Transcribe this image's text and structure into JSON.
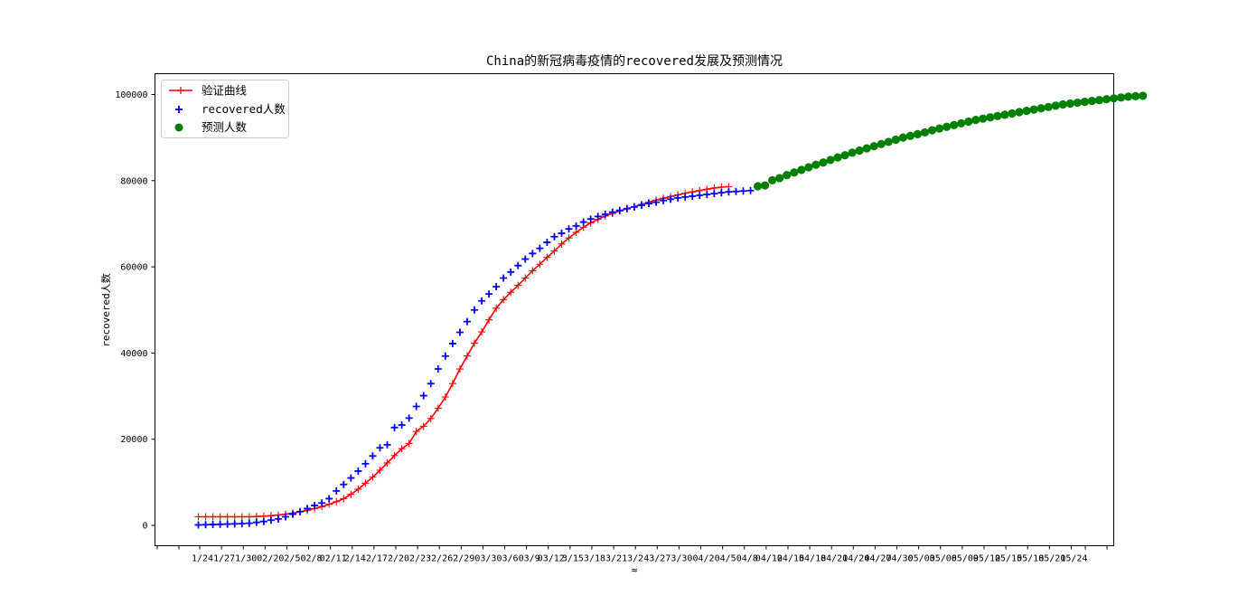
{
  "chart_data": {
    "type": "line",
    "title": "China的新冠病毒疫情的recovered发展及预测情况",
    "xlabel": "≈",
    "ylabel": "recovered人数",
    "ylim": [
      -5000,
      105000
    ],
    "yticks": [
      0,
      20000,
      40000,
      60000,
      80000,
      100000
    ],
    "ytick_labels": [
      "0",
      "20000",
      "40000",
      "60000",
      "80000",
      "100000"
    ],
    "xtick_labels": [
      "1/24",
      "1/27",
      "1/30",
      "02/2",
      "02/5",
      "02/8",
      "02/11",
      "2/14",
      "2/17",
      "2/20",
      "2/23",
      "2/26",
      "2/29",
      "03/3",
      "03/6",
      "03/9",
      "03/12",
      "3/15",
      "3/18",
      "3/21",
      "3/24",
      "3/27",
      "3/30",
      "04/2",
      "04/5",
      "04/8",
      "04/12",
      "04/15",
      "04/18",
      "04/21",
      "04/24",
      "04/27",
      "04/30",
      "05/03",
      "05/06",
      "05/09",
      "05/12",
      "05/15",
      "05/18",
      "05/21",
      "05/24"
    ],
    "legend": {
      "position": "upper-left",
      "entries": [
        "验证曲线",
        "recovered人数",
        "预测人数"
      ]
    },
    "colors": {
      "validation": "#ff0000",
      "recovered": "#0000ff",
      "predicted": "#008000"
    },
    "series": [
      {
        "name": "验证曲线",
        "marker": "plus-line",
        "x_start": 0,
        "values": [
          2000,
          2000,
          2000,
          2000,
          2000,
          2000,
          2000,
          2000,
          2050,
          2150,
          2250,
          2400,
          2600,
          2850,
          3150,
          3500,
          3900,
          4350,
          4900,
          5500,
          6200,
          7200,
          8400,
          9800,
          11200,
          12800,
          14500,
          16200,
          17800,
          19000,
          21800,
          23000,
          24800,
          27200,
          29800,
          32900,
          36300,
          39300,
          42300,
          44900,
          47700,
          50400,
          52400,
          54100,
          55700,
          57400,
          59100,
          60600,
          62200,
          63700,
          65300,
          66700,
          68000,
          69200,
          70200,
          71000,
          71800,
          72400,
          73000,
          73500,
          74000,
          74500,
          75000,
          75500,
          75900,
          76300,
          76700,
          77100,
          77400,
          77700,
          78000,
          78300,
          78500,
          78600
        ]
      },
      {
        "name": "recovered人数",
        "marker": "plus",
        "x_start": 0,
        "values": [
          100,
          150,
          200,
          250,
          300,
          350,
          400,
          500,
          700,
          900,
          1200,
          1500,
          2000,
          2600,
          3200,
          3900,
          4600,
          5200,
          6200,
          8000,
          9500,
          11000,
          12600,
          14300,
          16100,
          18000,
          18700,
          22700,
          23300,
          24900,
          27600,
          30100,
          32900,
          36300,
          39300,
          42200,
          44800,
          47300,
          50000,
          52100,
          53700,
          55400,
          57400,
          58800,
          60300,
          61800,
          63100,
          64300,
          65700,
          67000,
          67800,
          68800,
          69500,
          70400,
          71100,
          71700,
          72200,
          72700,
          73100,
          73500,
          73900,
          74300,
          74700,
          75000,
          75400,
          75700,
          76000,
          76200,
          76400,
          76600,
          76800,
          77000,
          77200,
          77400,
          77500,
          77600,
          77700
        ]
      },
      {
        "name": "预测人数",
        "marker": "circle",
        "x_start": 77,
        "values": [
          78700,
          78900,
          80100,
          80600,
          81300,
          81900,
          82500,
          83100,
          83700,
          84200,
          84800,
          85400,
          85900,
          86500,
          87000,
          87500,
          88000,
          88500,
          89000,
          89500,
          90000,
          90400,
          90800,
          91200,
          91700,
          92100,
          92500,
          92900,
          93300,
          93700,
          94100,
          94400,
          94700,
          95000,
          95300,
          95600,
          95900,
          96200,
          96500,
          96800,
          97100,
          97400,
          97700,
          97900,
          98100,
          98300,
          98500,
          98700,
          98900,
          99100,
          99300,
          99500,
          99600,
          99700
        ]
      }
    ]
  }
}
